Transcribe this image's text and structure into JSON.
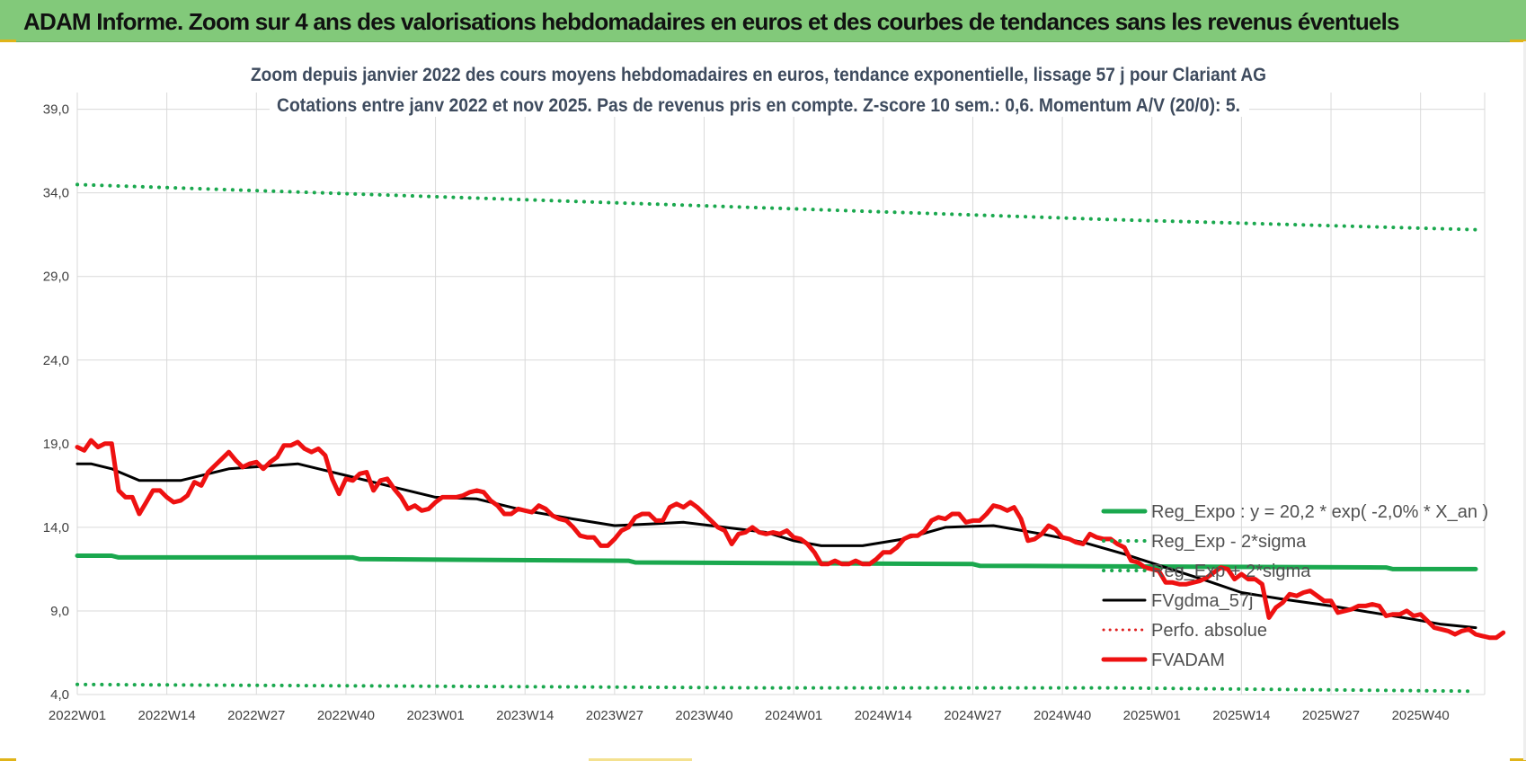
{
  "banner": {
    "title": "ADAM Informe. Zoom sur 4 ans des valorisations hebdomadaires en euros et des courbes de tendances sans les revenus éventuels"
  },
  "chart_data": {
    "type": "line",
    "title_line1": "Zoom depuis janvier 2022 des cours moyens hebdomadaires en euros, tendance exponentielle, lissage 57 j pour Clariant AG",
    "title_line2": "Cotations entre janv 2022 et nov 2025. Pas de revenus pris en compte. Z-score 10 sem.: 0,6. Momentum A/V (20/0): 5.",
    "ylim": [
      4,
      40
    ],
    "yticks": [
      4,
      9,
      14,
      19,
      24,
      29,
      34,
      39
    ],
    "ytick_labels": [
      "4,0",
      "9,0",
      "14,0",
      "19,0",
      "24,0",
      "29,0",
      "34,0",
      "39,0"
    ],
    "xlim": [
      0,
      199
    ],
    "xtick_positions": [
      0,
      13,
      26,
      39,
      52,
      65,
      78,
      91,
      104,
      117,
      130,
      143,
      156,
      169,
      182,
      195
    ],
    "xtick_labels": [
      "2022W01",
      "2022W14",
      "2022W27",
      "2022W40",
      "2023W01",
      "2023W14",
      "2023W27",
      "2023W40",
      "2024W01",
      "2024W14",
      "2024W27",
      "2024W40",
      "2025W01",
      "2025W14",
      "2025W27",
      "2025W40"
    ],
    "grid": true,
    "legend_position": "right",
    "series": [
      {
        "name": "Reg_Expo : y = 20,2 * exp( -2,0% *  X_an )",
        "color": "#1aa84e",
        "style": "solid",
        "width": 5,
        "points": [
          [
            0,
            12.3
          ],
          [
            5,
            12.3
          ],
          [
            6,
            12.2
          ],
          [
            40,
            12.2
          ],
          [
            41,
            12.1
          ],
          [
            80,
            12.0
          ],
          [
            81,
            11.9
          ],
          [
            130,
            11.8
          ],
          [
            131,
            11.7
          ],
          [
            190,
            11.6
          ],
          [
            191,
            11.5
          ],
          [
            203,
            11.5
          ]
        ]
      },
      {
        "name": "Reg_Exp - 2*sigma",
        "color": "#1aa84e",
        "style": "dotted",
        "width": 4,
        "points": [
          [
            0,
            4.6
          ],
          [
            50,
            4.5
          ],
          [
            100,
            4.4
          ],
          [
            150,
            4.4
          ],
          [
            203,
            4.2
          ]
        ]
      },
      {
        "name": "Reg_Exp + 2*sigma",
        "color": "#1aa84e",
        "style": "dotted",
        "width": 4,
        "points": [
          [
            0,
            34.5
          ],
          [
            50,
            33.8
          ],
          [
            100,
            33.1
          ],
          [
            150,
            32.4
          ],
          [
            203,
            31.8
          ]
        ]
      },
      {
        "name": "FVgdma_57j",
        "color": "#000000",
        "style": "solid",
        "width": 3,
        "points": [
          [
            0,
            17.8
          ],
          [
            2,
            17.8
          ],
          [
            5,
            17.5
          ],
          [
            9,
            16.8
          ],
          [
            15,
            16.8
          ],
          [
            22,
            17.5
          ],
          [
            32,
            17.8
          ],
          [
            38,
            17.2
          ],
          [
            45,
            16.5
          ],
          [
            52,
            15.8
          ],
          [
            58,
            15.7
          ],
          [
            65,
            15.0
          ],
          [
            72,
            14.5
          ],
          [
            78,
            14.1
          ],
          [
            83,
            14.2
          ],
          [
            88,
            14.3
          ],
          [
            94,
            14.0
          ],
          [
            100,
            13.7
          ],
          [
            104,
            13.2
          ],
          [
            108,
            12.9
          ],
          [
            114,
            12.9
          ],
          [
            120,
            13.3
          ],
          [
            126,
            14.0
          ],
          [
            133,
            14.1
          ],
          [
            140,
            13.6
          ],
          [
            146,
            13.1
          ],
          [
            152,
            12.4
          ],
          [
            158,
            11.6
          ],
          [
            164,
            10.8
          ],
          [
            169,
            10.1
          ],
          [
            175,
            9.7
          ],
          [
            182,
            9.3
          ],
          [
            188,
            8.9
          ],
          [
            194,
            8.5
          ],
          [
            198,
            8.2
          ],
          [
            203,
            8.0
          ]
        ]
      },
      {
        "name": "Perfo. absolue",
        "color": "#e02020",
        "style": "dotted",
        "width": 3,
        "points": []
      },
      {
        "name": "FVADAM",
        "color": "#ee1111",
        "style": "solid",
        "width": 5,
        "points": [
          [
            0,
            18.8
          ],
          [
            1,
            18.6
          ],
          [
            2,
            19.2
          ],
          [
            3,
            18.8
          ],
          [
            4,
            19.0
          ],
          [
            5,
            19.0
          ],
          [
            6,
            16.2
          ],
          [
            7,
            15.8
          ],
          [
            8,
            15.8
          ],
          [
            9,
            14.8
          ],
          [
            10,
            15.5
          ],
          [
            11,
            16.2
          ],
          [
            12,
            16.2
          ],
          [
            13,
            15.8
          ],
          [
            14,
            15.5
          ],
          [
            15,
            15.6
          ],
          [
            16,
            15.9
          ],
          [
            17,
            16.7
          ],
          [
            18,
            16.5
          ],
          [
            19,
            17.3
          ],
          [
            20,
            17.7
          ],
          [
            21,
            18.1
          ],
          [
            22,
            18.5
          ],
          [
            23,
            18.0
          ],
          [
            24,
            17.6
          ],
          [
            25,
            17.8
          ],
          [
            26,
            17.9
          ],
          [
            27,
            17.5
          ],
          [
            28,
            17.9
          ],
          [
            29,
            18.2
          ],
          [
            30,
            18.9
          ],
          [
            31,
            18.9
          ],
          [
            32,
            19.1
          ],
          [
            33,
            18.7
          ],
          [
            34,
            18.5
          ],
          [
            35,
            18.7
          ],
          [
            36,
            18.3
          ],
          [
            37,
            16.9
          ],
          [
            38,
            16.0
          ],
          [
            39,
            16.9
          ],
          [
            40,
            16.8
          ],
          [
            41,
            17.2
          ],
          [
            42,
            17.3
          ],
          [
            43,
            16.2
          ],
          [
            44,
            16.8
          ],
          [
            45,
            16.9
          ],
          [
            46,
            16.3
          ],
          [
            47,
            15.8
          ],
          [
            48,
            15.1
          ],
          [
            49,
            15.3
          ],
          [
            50,
            15.0
          ],
          [
            51,
            15.1
          ],
          [
            52,
            15.5
          ],
          [
            53,
            15.8
          ],
          [
            54,
            15.8
          ],
          [
            55,
            15.8
          ],
          [
            56,
            15.9
          ],
          [
            57,
            16.1
          ],
          [
            58,
            16.2
          ],
          [
            59,
            16.1
          ],
          [
            60,
            15.6
          ],
          [
            61,
            15.3
          ],
          [
            62,
            14.8
          ],
          [
            63,
            14.8
          ],
          [
            64,
            15.1
          ],
          [
            65,
            15.0
          ],
          [
            66,
            14.9
          ],
          [
            67,
            15.3
          ],
          [
            68,
            15.1
          ],
          [
            69,
            14.7
          ],
          [
            70,
            14.5
          ],
          [
            71,
            14.4
          ],
          [
            72,
            14.0
          ],
          [
            73,
            13.5
          ],
          [
            74,
            13.4
          ],
          [
            75,
            13.4
          ],
          [
            76,
            12.9
          ],
          [
            77,
            12.9
          ],
          [
            78,
            13.3
          ],
          [
            79,
            13.8
          ],
          [
            80,
            14.0
          ],
          [
            81,
            14.6
          ],
          [
            82,
            14.8
          ],
          [
            83,
            14.8
          ],
          [
            84,
            14.4
          ],
          [
            85,
            14.4
          ],
          [
            86,
            15.2
          ],
          [
            87,
            15.4
          ],
          [
            88,
            15.2
          ],
          [
            89,
            15.5
          ],
          [
            90,
            15.2
          ],
          [
            91,
            14.8
          ],
          [
            92,
            14.4
          ],
          [
            93,
            14.0
          ],
          [
            94,
            13.8
          ],
          [
            95,
            13.0
          ],
          [
            96,
            13.6
          ],
          [
            97,
            13.7
          ],
          [
            98,
            14.0
          ],
          [
            99,
            13.7
          ],
          [
            100,
            13.6
          ],
          [
            101,
            13.7
          ],
          [
            102,
            13.6
          ],
          [
            103,
            13.8
          ],
          [
            104,
            13.4
          ],
          [
            105,
            13.3
          ],
          [
            106,
            13.0
          ],
          [
            107,
            12.5
          ],
          [
            108,
            11.8
          ],
          [
            109,
            11.8
          ],
          [
            110,
            12.0
          ],
          [
            111,
            11.8
          ],
          [
            112,
            11.8
          ],
          [
            113,
            12.0
          ],
          [
            114,
            11.8
          ],
          [
            115,
            11.8
          ],
          [
            116,
            12.1
          ],
          [
            117,
            12.5
          ],
          [
            118,
            12.5
          ],
          [
            119,
            12.8
          ],
          [
            120,
            13.3
          ],
          [
            121,
            13.5
          ],
          [
            122,
            13.5
          ],
          [
            123,
            13.8
          ],
          [
            124,
            14.4
          ],
          [
            125,
            14.6
          ],
          [
            126,
            14.5
          ],
          [
            127,
            14.8
          ],
          [
            128,
            14.8
          ],
          [
            129,
            14.3
          ],
          [
            130,
            14.4
          ],
          [
            131,
            14.4
          ],
          [
            132,
            14.8
          ],
          [
            133,
            15.3
          ],
          [
            134,
            15.2
          ],
          [
            135,
            15.0
          ],
          [
            136,
            15.2
          ],
          [
            137,
            14.5
          ],
          [
            138,
            13.2
          ],
          [
            139,
            13.3
          ],
          [
            140,
            13.6
          ],
          [
            141,
            14.1
          ],
          [
            142,
            13.9
          ],
          [
            143,
            13.4
          ],
          [
            144,
            13.3
          ],
          [
            145,
            13.1
          ],
          [
            146,
            13.0
          ],
          [
            147,
            13.6
          ],
          [
            148,
            13.4
          ],
          [
            149,
            13.3
          ],
          [
            150,
            13.3
          ],
          [
            151,
            13.0
          ],
          [
            152,
            12.8
          ],
          [
            153,
            12.0
          ],
          [
            154,
            11.9
          ],
          [
            155,
            11.6
          ],
          [
            156,
            11.5
          ],
          [
            157,
            11.4
          ],
          [
            158,
            10.7
          ],
          [
            159,
            10.7
          ],
          [
            160,
            10.6
          ],
          [
            161,
            10.6
          ],
          [
            162,
            10.7
          ],
          [
            163,
            10.8
          ],
          [
            164,
            11.0
          ],
          [
            165,
            11.3
          ],
          [
            166,
            11.6
          ],
          [
            167,
            11.5
          ],
          [
            168,
            10.9
          ],
          [
            169,
            11.2
          ],
          [
            170,
            10.9
          ],
          [
            171,
            10.9
          ],
          [
            172,
            10.6
          ],
          [
            173,
            8.6
          ],
          [
            174,
            9.2
          ],
          [
            175,
            9.5
          ],
          [
            176,
            10.0
          ],
          [
            177,
            9.9
          ],
          [
            178,
            10.1
          ],
          [
            179,
            10.2
          ],
          [
            180,
            9.9
          ],
          [
            181,
            9.6
          ],
          [
            182,
            9.6
          ],
          [
            183,
            8.9
          ],
          [
            184,
            9.0
          ],
          [
            185,
            9.1
          ],
          [
            186,
            9.3
          ],
          [
            187,
            9.3
          ],
          [
            188,
            9.4
          ],
          [
            189,
            9.3
          ],
          [
            190,
            8.7
          ],
          [
            191,
            8.8
          ],
          [
            192,
            8.8
          ],
          [
            193,
            9.0
          ],
          [
            194,
            8.7
          ],
          [
            195,
            8.8
          ],
          [
            196,
            8.4
          ],
          [
            197,
            8.0
          ],
          [
            198,
            7.9
          ],
          [
            199,
            7.8
          ],
          [
            200,
            7.6
          ],
          [
            201,
            7.8
          ],
          [
            202,
            7.9
          ],
          [
            203,
            7.6
          ],
          [
            204,
            7.5
          ],
          [
            205,
            7.4
          ],
          [
            206,
            7.4
          ],
          [
            207,
            7.7
          ]
        ]
      }
    ]
  }
}
